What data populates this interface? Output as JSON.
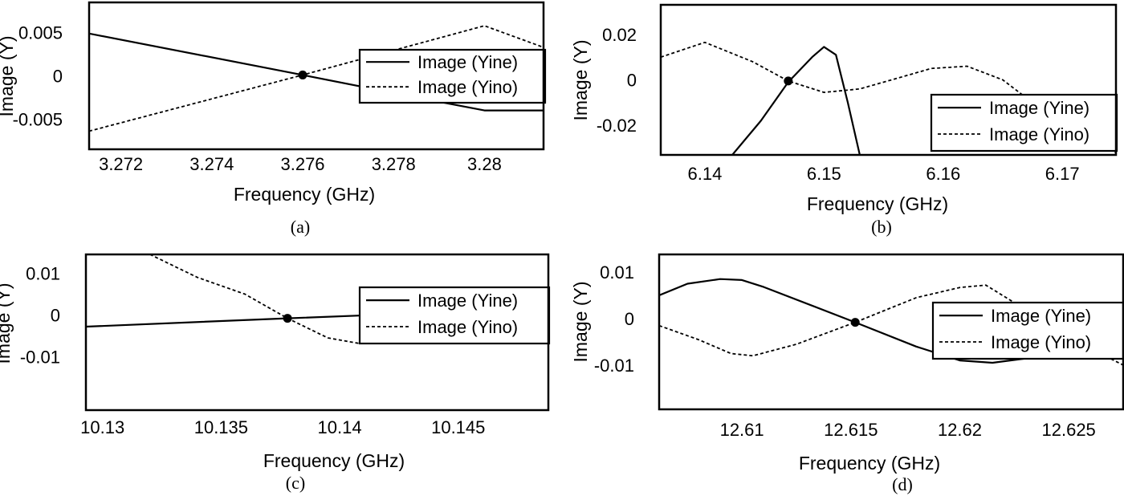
{
  "chart_data": [
    {
      "id": "a",
      "type": "line",
      "caption": "(a)",
      "xlabel": "Frequency (GHz)",
      "ylabel": "Image (Y)",
      "xlim": [
        3.2713,
        3.2813
      ],
      "ylim": [
        -0.0085,
        0.0085
      ],
      "xticks": [
        3.272,
        3.274,
        3.276,
        3.278,
        3.28
      ],
      "xtick_labels": [
        "3.272",
        "3.274",
        "3.276",
        "3.278",
        "3.28"
      ],
      "yticks": [
        0.005,
        0,
        -0.005
      ],
      "ytick_labels": [
        "0.005",
        "0",
        "-0.005"
      ],
      "legend_position": "right",
      "series": [
        {
          "name": "Image (Yine)",
          "style": "solid",
          "x": [
            3.2713,
            3.276,
            3.2785,
            3.28,
            3.2813
          ],
          "y": [
            0.0049,
            0.0001,
            -0.0025,
            -0.004,
            -0.004
          ]
        },
        {
          "name": "Image (Yino)",
          "style": "dashed",
          "x": [
            3.2713,
            3.276,
            3.28,
            3.2813
          ],
          "y": [
            -0.0064,
            0.0001,
            0.0058,
            0.0033
          ]
        }
      ],
      "marker": {
        "x": 3.276,
        "y": 0.0001
      }
    },
    {
      "id": "b",
      "type": "line",
      "caption": "(b)",
      "xlabel": "Frequency (GHz)",
      "ylabel": "Image (Y)",
      "xlim": [
        6.1363,
        6.1745
      ],
      "ylim": [
        -0.033,
        0.033
      ],
      "xticks": [
        6.14,
        6.15,
        6.16,
        6.17
      ],
      "xtick_labels": [
        "6.14",
        "6.15",
        "6.16",
        "6.17"
      ],
      "yticks": [
        0.02,
        0,
        -0.02
      ],
      "ytick_labels": [
        "0.02",
        "0",
        "-0.02"
      ],
      "legend_position": "bottom-right",
      "series": [
        {
          "name": "Image (Yine)",
          "style": "solid",
          "x": [
            6.1423,
            6.1447,
            6.147,
            6.149,
            6.15,
            6.151,
            6.152,
            6.153
          ],
          "y": [
            -0.033,
            -0.018,
            -0.001,
            0.01,
            0.0145,
            0.011,
            -0.01,
            -0.033
          ]
        },
        {
          "name": "Image (Yino)",
          "style": "dashed",
          "x": [
            6.1363,
            6.14,
            6.144,
            6.147,
            6.15,
            6.153,
            6.156,
            6.159,
            6.162,
            6.165,
            6.168,
            6.171,
            6.1745
          ],
          "y": [
            0.01,
            0.0165,
            0.008,
            -0.0005,
            -0.0055,
            -0.004,
            0.0005,
            0.005,
            0.006,
            0.0,
            -0.012,
            -0.024,
            -0.032
          ]
        }
      ],
      "marker": {
        "x": 6.147,
        "y": -0.0005
      }
    },
    {
      "id": "c",
      "type": "line",
      "caption": "(c)",
      "xlabel": "Frequency (GHz)",
      "ylabel": "Image (Y)",
      "xlim": [
        10.1293,
        10.1488
      ],
      "ylim": [
        -0.0228,
        0.0145
      ],
      "xticks": [
        10.13,
        10.135,
        10.14,
        10.145
      ],
      "xtick_labels": [
        "10.13",
        "10.135",
        "10.14",
        "10.145"
      ],
      "yticks": [
        0.01,
        0,
        -0.01
      ],
      "ytick_labels": [
        "0.01",
        "0",
        "-0.01"
      ],
      "legend_position": "right",
      "series": [
        {
          "name": "Image (Yine)",
          "style": "solid",
          "x": [
            10.1293,
            10.1378,
            10.1488
          ],
          "y": [
            -0.0028,
            -0.0008,
            0.0016
          ]
        },
        {
          "name": "Image (Yino)",
          "style": "dashed",
          "x": [
            10.132,
            10.134,
            10.136,
            10.1378,
            10.1395,
            10.1408,
            10.142,
            10.144,
            10.1488
          ],
          "y": [
            0.0145,
            0.009,
            0.005,
            -0.0008,
            -0.0055,
            -0.0068,
            -0.006,
            -0.002,
            0.0016
          ]
        }
      ],
      "marker": {
        "x": 10.1378,
        "y": -0.0008
      }
    },
    {
      "id": "d",
      "type": "line",
      "caption": "(d)",
      "xlabel": "Frequency (GHz)",
      "ylabel": "Image (Y)",
      "xlim": [
        12.6062,
        12.6275
      ],
      "ylim": [
        -0.0195,
        0.0138
      ],
      "xticks": [
        12.61,
        12.615,
        12.62,
        12.625
      ],
      "xtick_labels": [
        "12.61",
        "12.615",
        "12.62",
        "12.625"
      ],
      "yticks": [
        0.01,
        0,
        -0.01
      ],
      "ytick_labels": [
        "0.01",
        "0",
        "-0.01"
      ],
      "legend_position": "right",
      "series": [
        {
          "name": "Image (Yine)",
          "style": "solid",
          "x": [
            12.6062,
            12.6075,
            12.609,
            12.61,
            12.611,
            12.6152,
            12.618,
            12.62,
            12.6215,
            12.624,
            12.6275
          ],
          "y": [
            0.005,
            0.0075,
            0.0085,
            0.0083,
            0.0068,
            -0.0008,
            -0.006,
            -0.009,
            -0.0095,
            -0.008,
            -0.006
          ]
        },
        {
          "name": "Image (Yino)",
          "style": "dashed",
          "x": [
            12.6062,
            12.608,
            12.6095,
            12.6105,
            12.6125,
            12.6152,
            12.618,
            12.62,
            12.6212,
            12.623,
            12.625,
            12.6275
          ],
          "y": [
            -0.0015,
            -0.0045,
            -0.0075,
            -0.008,
            -0.0055,
            -0.0008,
            0.0045,
            0.0067,
            0.0072,
            0.002,
            -0.004,
            -0.01
          ]
        }
      ],
      "marker": {
        "x": 12.6152,
        "y": -0.0008
      }
    }
  ]
}
